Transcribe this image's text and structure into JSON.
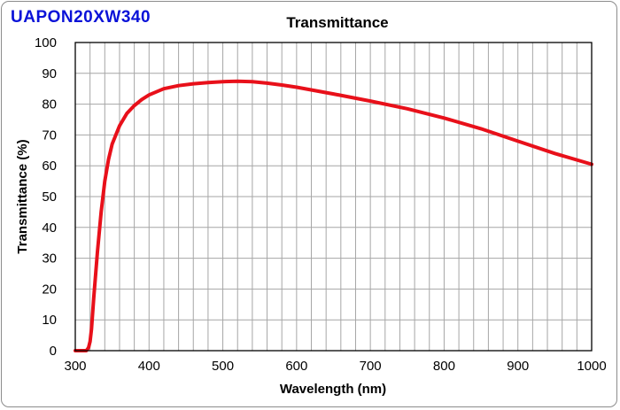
{
  "product_name": "UAPON20XW340",
  "colors": {
    "product_name": "#0a12d8",
    "curve": "#e8101a",
    "grid": "#a6a6a6",
    "axis": "#000000"
  },
  "chart_data": {
    "type": "line",
    "title": "Transmittance",
    "xlabel": "Wavelength (nm)",
    "ylabel": "Transmittance (%)",
    "xlim": [
      300,
      1000
    ],
    "ylim": [
      0,
      100
    ],
    "x_major_ticks": [
      300,
      400,
      500,
      600,
      700,
      800,
      900,
      1000
    ],
    "x_minor_step": 20,
    "y_ticks": [
      0,
      10,
      20,
      30,
      40,
      50,
      60,
      70,
      80,
      90,
      100
    ],
    "grid": true,
    "series": [
      {
        "name": "UAPON20XW340",
        "x": [
          300,
          315,
          318,
          320,
          322,
          325,
          330,
          335,
          340,
          345,
          350,
          355,
          360,
          370,
          380,
          390,
          400,
          420,
          440,
          460,
          480,
          500,
          520,
          540,
          560,
          580,
          600,
          650,
          700,
          750,
          800,
          850,
          900,
          950,
          1000
        ],
        "y": [
          0,
          0,
          1,
          3,
          7,
          17,
          32,
          45,
          55,
          62,
          67,
          70,
          73,
          77,
          79.5,
          81.5,
          83,
          85,
          86,
          86.6,
          87,
          87.3,
          87.4,
          87.3,
          86.8,
          86.2,
          85.5,
          83.3,
          81,
          78.5,
          75.5,
          72,
          68,
          64,
          60.5
        ]
      }
    ]
  }
}
